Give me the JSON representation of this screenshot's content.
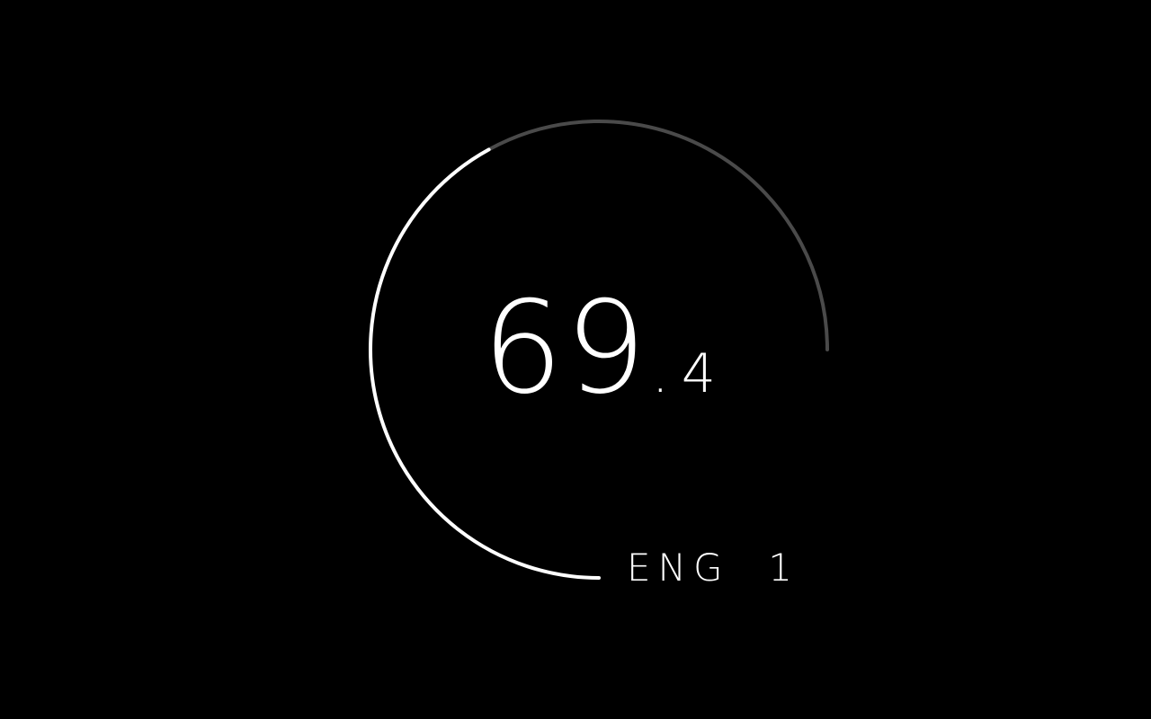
{
  "gauge": {
    "value_int": "69",
    "value_dot": ".",
    "value_frac": "4",
    "value": 69.4,
    "level_fraction": 0.56,
    "label": "ENG  1",
    "colors": {
      "background": "#000000",
      "active_arc": "#ffffff",
      "inactive_arc": "#4a4a4a",
      "text": "#ffffff"
    }
  }
}
